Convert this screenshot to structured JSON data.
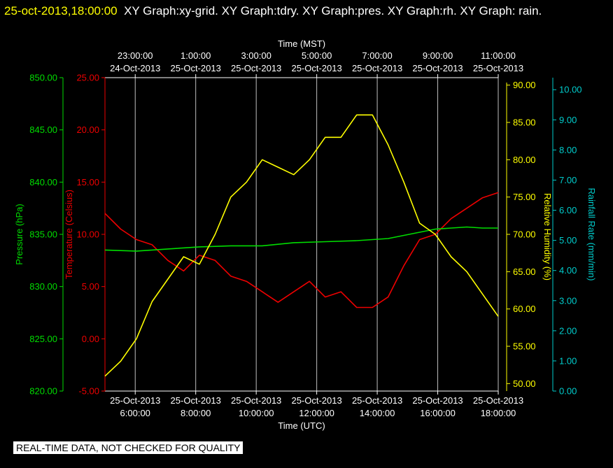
{
  "header": {
    "timestamp": "25-oct-2013,18:00:00",
    "title_rest": "XY Graph:xy-grid.  XY Graph:tdry.  XY Graph:pres.  XY Graph:rh.  XY Graph: rain."
  },
  "notice": "REAL-TIME DATA, NOT CHECKED FOR QUALITY",
  "colors": {
    "background": "#000000",
    "pressure": "#00dd00",
    "temperature": "#ee0000",
    "humidity": "#ffff00",
    "rainfall": "#00cccc",
    "grid": "#ffffff",
    "axis_text": "#ffffff"
  },
  "chart_data": {
    "type": "line",
    "grid": true,
    "x_bottom": {
      "label": "Time (UTC)",
      "range": [
        "2013-10-25 05:30",
        "2013-10-25 18:00"
      ],
      "ticks": [
        {
          "date": "25-Oct-2013",
          "time": "6:00:00"
        },
        {
          "date": "25-Oct-2013",
          "time": "8:00:00"
        },
        {
          "date": "25-Oct-2013",
          "time": "10:00:00"
        },
        {
          "date": "25-Oct-2013",
          "time": "12:00:00"
        },
        {
          "date": "25-Oct-2013",
          "time": "14:00:00"
        },
        {
          "date": "25-Oct-2013",
          "time": "16:00:00"
        },
        {
          "date": "25-Oct-2013",
          "time": "18:00:00"
        }
      ]
    },
    "x_top": {
      "label": "Time (MST)",
      "ticks": [
        {
          "time": "23:00:00",
          "date": "24-Oct-2013"
        },
        {
          "time": "1:00:00",
          "date": "25-Oct-2013"
        },
        {
          "time": "3:00:00",
          "date": "25-Oct-2013"
        },
        {
          "time": "5:00:00",
          "date": "25-Oct-2013"
        },
        {
          "time": "7:00:00",
          "date": "25-Oct-2013"
        },
        {
          "time": "9:00:00",
          "date": "25-Oct-2013"
        },
        {
          "time": "11:00:00",
          "date": "25-Oct-2013"
        }
      ]
    },
    "axes": {
      "pressure": {
        "label": "Pressure (hPa)",
        "range": [
          820,
          850
        ],
        "ticks": [
          "820.00",
          "825.00",
          "830.00",
          "835.00",
          "840.00",
          "845.00",
          "850.00"
        ]
      },
      "temperature": {
        "label": "Temperature (Celsius)",
        "range": [
          -5,
          25
        ],
        "ticks": [
          "-5.00",
          "0.00",
          "5.00",
          "10.00",
          "15.00",
          "20.00",
          "25.00"
        ]
      },
      "humidity": {
        "label": "Relative Humidity (%)",
        "range": [
          49,
          91
        ],
        "ticks": [
          "50.00",
          "55.00",
          "60.00",
          "65.00",
          "70.00",
          "75.00",
          "80.00",
          "85.00",
          "90.00"
        ]
      },
      "rainfall": {
        "label": "Rainfall Rate (mm/min)",
        "range": [
          0,
          10.4
        ],
        "ticks": [
          "0.00",
          "1.00",
          "2.00",
          "3.00",
          "4.00",
          "5.00",
          "6.00",
          "7.00",
          "8.00",
          "9.00",
          "10.00"
        ]
      }
    },
    "series": [
      {
        "name": "tdry",
        "axis": "temperature",
        "x": [
          "2013-10-25 05:30",
          "2013-10-25 06:00",
          "2013-10-25 06:30",
          "2013-10-25 07:00",
          "2013-10-25 07:30",
          "2013-10-25 08:00",
          "2013-10-25 08:30",
          "2013-10-25 09:00",
          "2013-10-25 09:30",
          "2013-10-25 10:00",
          "2013-10-25 10:30",
          "2013-10-25 11:00",
          "2013-10-25 11:30",
          "2013-10-25 12:00",
          "2013-10-25 12:30",
          "2013-10-25 13:00",
          "2013-10-25 13:30",
          "2013-10-25 14:00",
          "2013-10-25 14:30",
          "2013-10-25 15:00",
          "2013-10-25 15:30",
          "2013-10-25 16:00",
          "2013-10-25 16:30",
          "2013-10-25 17:00",
          "2013-10-25 17:30",
          "2013-10-25 18:00"
        ],
        "values": [
          12.0,
          10.5,
          9.5,
          9.0,
          7.5,
          6.5,
          8.0,
          7.5,
          6.0,
          5.5,
          4.5,
          3.5,
          4.5,
          5.5,
          4.0,
          4.5,
          3.0,
          3.0,
          4.0,
          7.0,
          9.5,
          10.0,
          11.5,
          12.5,
          13.5,
          14.0
        ]
      },
      {
        "name": "pres",
        "axis": "pressure",
        "x": [
          "2013-10-25 05:30",
          "2013-10-25 06:30",
          "2013-10-25 07:30",
          "2013-10-25 08:30",
          "2013-10-25 09:30",
          "2013-10-25 10:30",
          "2013-10-25 11:30",
          "2013-10-25 12:30",
          "2013-10-25 13:30",
          "2013-10-25 14:30",
          "2013-10-25 15:00",
          "2013-10-25 15:30",
          "2013-10-25 16:00",
          "2013-10-25 16:30",
          "2013-10-25 17:00",
          "2013-10-25 17:30",
          "2013-10-25 18:00"
        ],
        "values": [
          833.5,
          833.4,
          833.6,
          833.8,
          833.9,
          833.9,
          834.2,
          834.3,
          834.4,
          834.6,
          834.9,
          835.2,
          835.5,
          835.6,
          835.7,
          835.6,
          835.6
        ]
      },
      {
        "name": "rh",
        "axis": "humidity",
        "x": [
          "2013-10-25 05:30",
          "2013-10-25 06:00",
          "2013-10-25 06:30",
          "2013-10-25 07:00",
          "2013-10-25 07:30",
          "2013-10-25 08:00",
          "2013-10-25 08:30",
          "2013-10-25 09:00",
          "2013-10-25 09:30",
          "2013-10-25 10:00",
          "2013-10-25 10:30",
          "2013-10-25 11:00",
          "2013-10-25 11:30",
          "2013-10-25 12:00",
          "2013-10-25 12:30",
          "2013-10-25 13:00",
          "2013-10-25 13:30",
          "2013-10-25 14:00",
          "2013-10-25 14:30",
          "2013-10-25 15:00",
          "2013-10-25 15:30",
          "2013-10-25 16:00",
          "2013-10-25 16:30",
          "2013-10-25 17:00",
          "2013-10-25 17:30",
          "2013-10-25 18:00"
        ],
        "values": [
          51.0,
          53.0,
          56.0,
          61.0,
          64.0,
          67.0,
          66.0,
          70.0,
          75.0,
          77.0,
          80.0,
          79.0,
          78.0,
          80.0,
          83.0,
          83.0,
          86.0,
          86.0,
          82.0,
          77.0,
          71.5,
          70.0,
          67.0,
          65.0,
          62.0,
          59.0
        ]
      },
      {
        "name": "rain",
        "axis": "rainfall",
        "x": [],
        "values": []
      }
    ]
  }
}
